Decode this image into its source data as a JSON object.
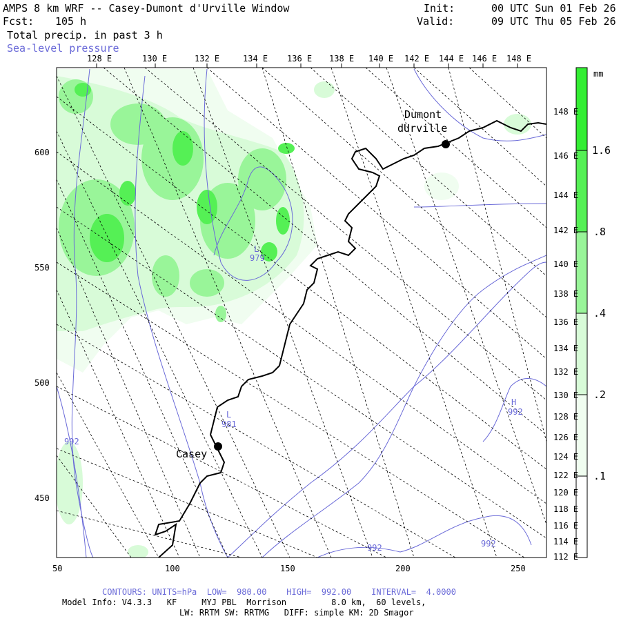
{
  "header": {
    "title": "AMPS 8 km WRF -- Casey-Dumont d'Urville Window",
    "fcst_label": "Fcst:",
    "fcst_value": "105 h",
    "field": "Total precip. in past 3 h",
    "overlay": "Sea-level pressure",
    "init_label": "Init:",
    "init_value": "00 UTC Sun 01 Feb 26",
    "valid_label": "Valid:",
    "valid_value": "09 UTC Thu 05 Feb 26"
  },
  "top_axis_labels": [
    "128 E",
    "130 E",
    "132 E",
    "134 E",
    "136 E",
    "138 E",
    "140 E",
    "142 E",
    "144 E",
    "146 E",
    "148 E"
  ],
  "right_axis_labels": [
    "148 E",
    "146 E",
    "144 E",
    "142 E",
    "140 E",
    "138 E",
    "136 E",
    "134 E",
    "132 E",
    "130 E",
    "128 E",
    "126 E",
    "124 E",
    "122 E",
    "120 E",
    "118 E",
    "116 E",
    "114 E",
    "112 E"
  ],
  "x_axis_labels": [
    "50",
    "100",
    "150",
    "200",
    "250"
  ],
  "y_axis_labels": [
    "600",
    "550",
    "500",
    "450"
  ],
  "colorbar": {
    "unit": "mm",
    "labels": [
      "1.6",
      ".8",
      ".4",
      ".2",
      ".1"
    ],
    "colors": [
      "#33ee33",
      "#55f055",
      "#99f599",
      "#d8fbd8",
      "#f0fdf0"
    ]
  },
  "stations": [
    {
      "name_line1": "Dumont",
      "name_line2": "dUrville"
    },
    {
      "name_line1": "Casey"
    }
  ],
  "pressure_marks": [
    {
      "letter": "L",
      "value": "979"
    },
    {
      "letter": "L",
      "value": "981"
    },
    {
      "letter": "H",
      "value": "992"
    }
  ],
  "contour_labels": [
    "992",
    "992",
    "992"
  ],
  "footer": {
    "contours": "CONTOURS: UNITS=hPa  LOW=  980.00    HIGH=  992.00    INTERVAL=  4.0000",
    "model_info": "Model Info: V4.3.3   KF     MYJ PBL  Morrison         8.0 km,  60 levels,",
    "physics": "LW: RRTM SW: RRTMG   DIFF: simple KM: 2D Smagor"
  },
  "colors": {
    "contour": "#6a6ad8",
    "coast": "#000000",
    "grid": "#000000"
  }
}
